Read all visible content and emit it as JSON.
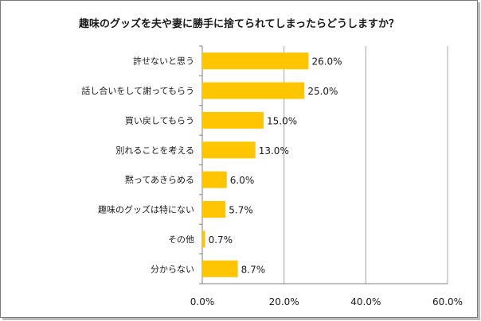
{
  "chart_data": {
    "type": "bar",
    "orientation": "horizontal",
    "title": "趣味のグッズを夫や妻に勝手に捨てられてしまったらどうしますか？",
    "categories": [
      "許せないと思う",
      "話し合いをして謝ってもらう",
      "買い戻してもらう",
      "別れることを考える",
      "黙ってあきらめる",
      "趣味のグッズは特にない",
      "その他",
      "分からない"
    ],
    "values": [
      26.0,
      25.0,
      15.0,
      13.0,
      6.0,
      5.7,
      0.7,
      8.7
    ],
    "value_labels": [
      "26.0%",
      "25.0%",
      "15.0%",
      "13.0%",
      "6.0%",
      "5.7%",
      "0.7%",
      "8.7%"
    ],
    "xlim": [
      0,
      60
    ],
    "xticks": [
      0,
      20,
      40,
      60
    ],
    "xtick_labels": [
      "0.0%",
      "20.0%",
      "40.0%",
      "60.0%"
    ],
    "grid": "vertical",
    "legend": "none",
    "bar_color": "#FFC600"
  }
}
